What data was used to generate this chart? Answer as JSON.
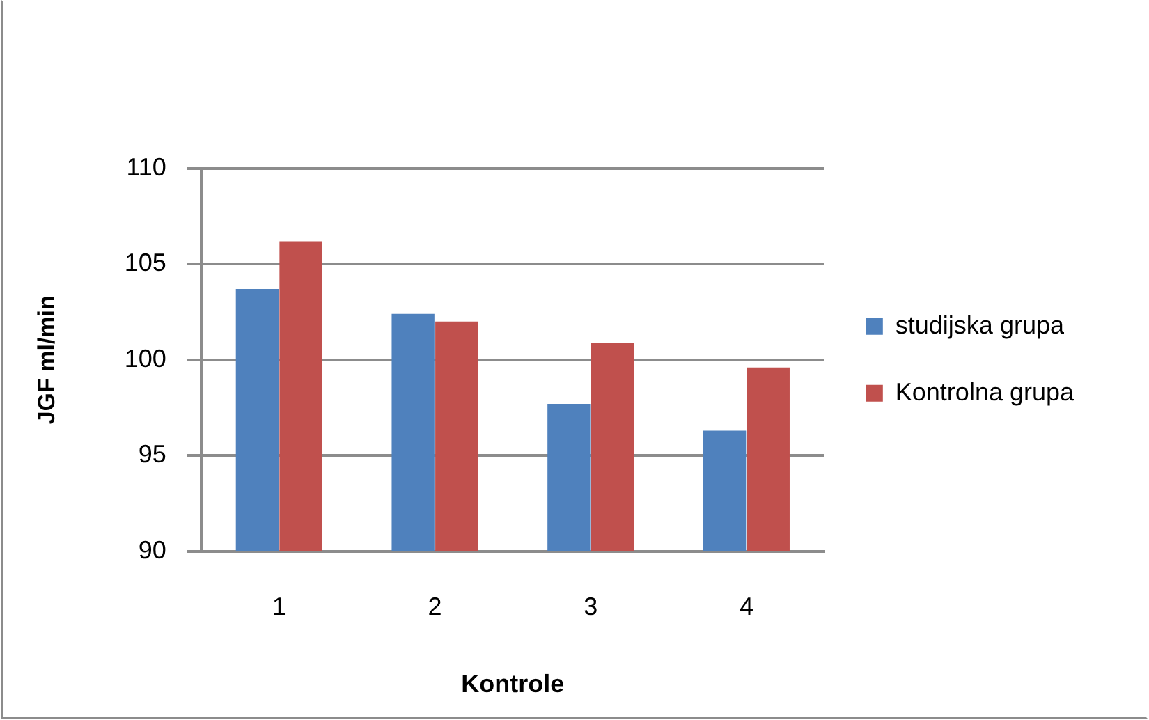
{
  "chart_data": {
    "type": "bar",
    "xlabel": "Kontrole",
    "ylabel": "JGF ml/min",
    "categories": [
      "1",
      "2",
      "3",
      "4"
    ],
    "series": [
      {
        "name": "studijska grupa",
        "color": "#4f81bd",
        "values": [
          103.7,
          102.4,
          97.7,
          96.3
        ]
      },
      {
        "name": "Kontrolna grupa",
        "color": "#c0504d",
        "values": [
          106.2,
          102.0,
          100.9,
          99.6
        ]
      }
    ],
    "ylim": [
      90,
      110
    ],
    "yticks": [
      90,
      95,
      100,
      105,
      110
    ],
    "grid": "y",
    "legend": "right"
  }
}
